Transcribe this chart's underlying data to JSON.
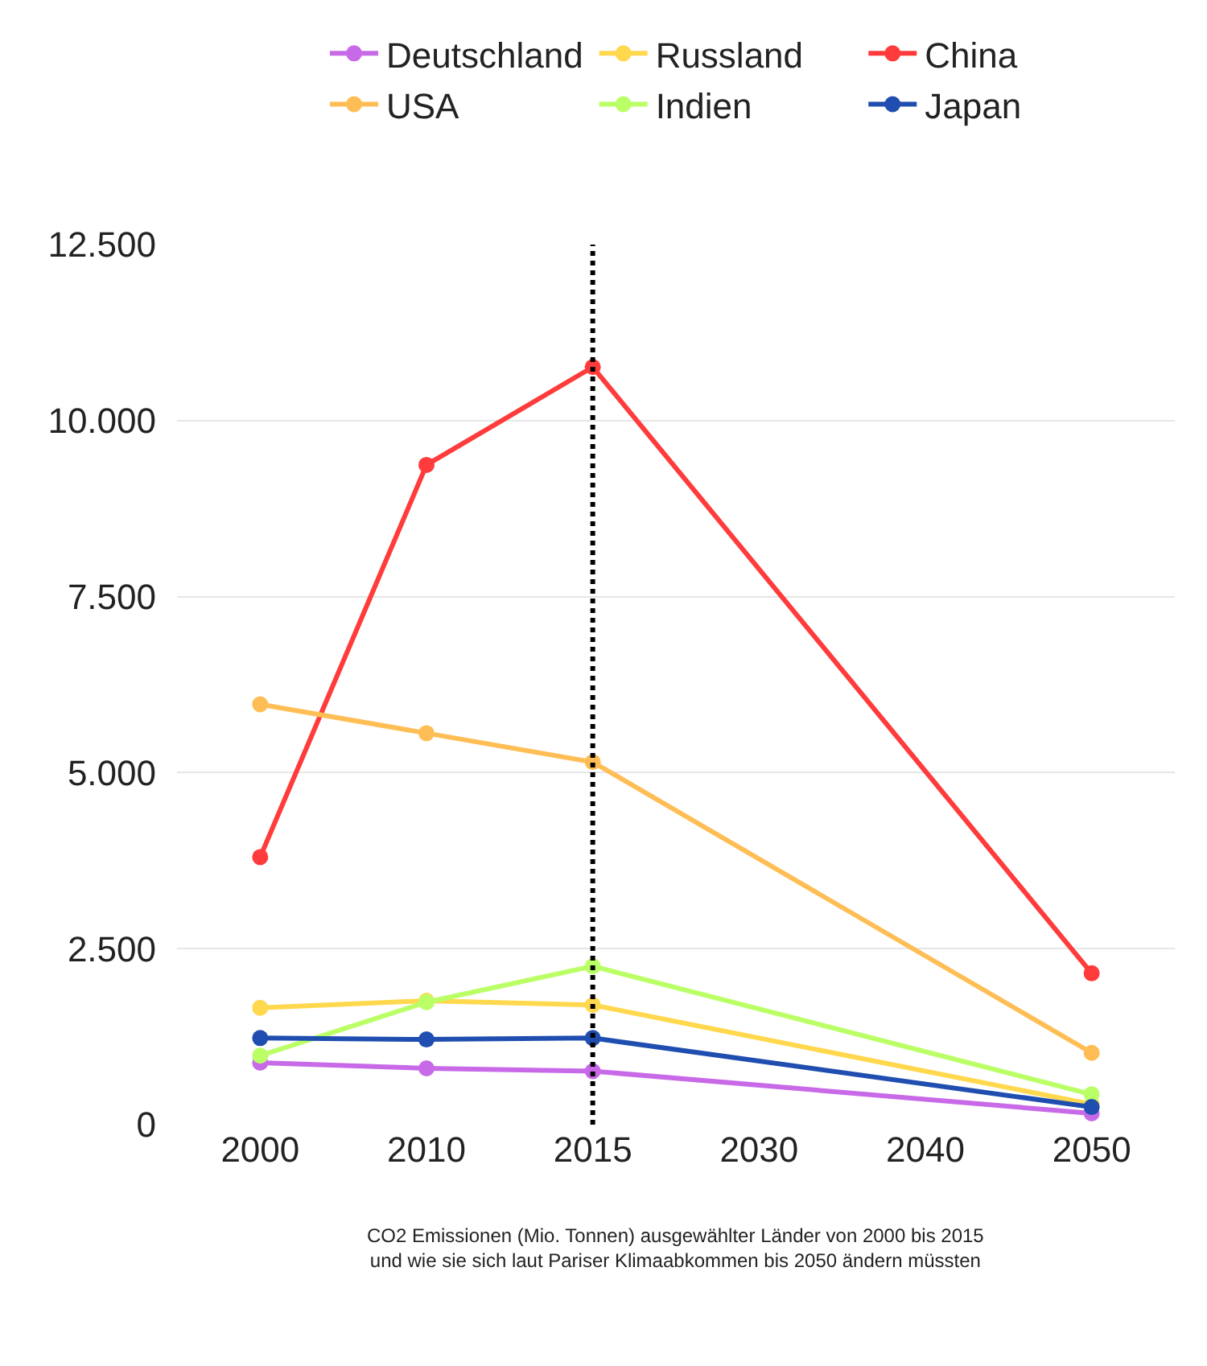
{
  "chart_data": {
    "type": "line",
    "categories": [
      "2000",
      "2010",
      "2015",
      "2030",
      "2040",
      "2050"
    ],
    "series": [
      {
        "name": "Deutschland",
        "color": "#c86ae8",
        "values": [
          880,
          800,
          760,
          null,
          null,
          160
        ]
      },
      {
        "name": "Russland",
        "color": "#ffd84d",
        "values": [
          1660,
          1760,
          1700,
          null,
          null,
          290
        ]
      },
      {
        "name": "China",
        "color": "#ff3b3b",
        "values": [
          3800,
          9370,
          10760,
          null,
          null,
          2150
        ]
      },
      {
        "name": "USA",
        "color": "#ffbe55",
        "values": [
          5970,
          5560,
          5150,
          null,
          null,
          1020
        ]
      },
      {
        "name": "Indien",
        "color": "#bbff66",
        "values": [
          980,
          1740,
          2250,
          null,
          null,
          430
        ]
      },
      {
        "name": "Japan",
        "color": "#1f4eb0",
        "values": [
          1230,
          1210,
          1230,
          null,
          null,
          250
        ]
      }
    ],
    "ylim": [
      0,
      12500
    ],
    "yticks": [
      0,
      {
        "value": 2500,
        "label": "2.500"
      },
      {
        "value": 5000,
        "label": "5.000"
      },
      {
        "value": 7500,
        "label": "7.500"
      },
      {
        "value": 10000,
        "label": "10.000"
      },
      {
        "value": 12500,
        "label": "12.500"
      }
    ],
    "grid": "y",
    "legend": "top",
    "marker": "circle",
    "line_style": "solid",
    "ref_lines": [
      {
        "axis": "x",
        "value": "2015",
        "color": "#000000",
        "line_style": "dotted"
      }
    ],
    "annotations": [
      "CO2 Emissionen (Mio. Tonnen) ausgewählter Länder von 2000 bis 2015\nund wie sie sich laut Pariser Klimaabkommen bis 2050 ändern müssten"
    ]
  }
}
